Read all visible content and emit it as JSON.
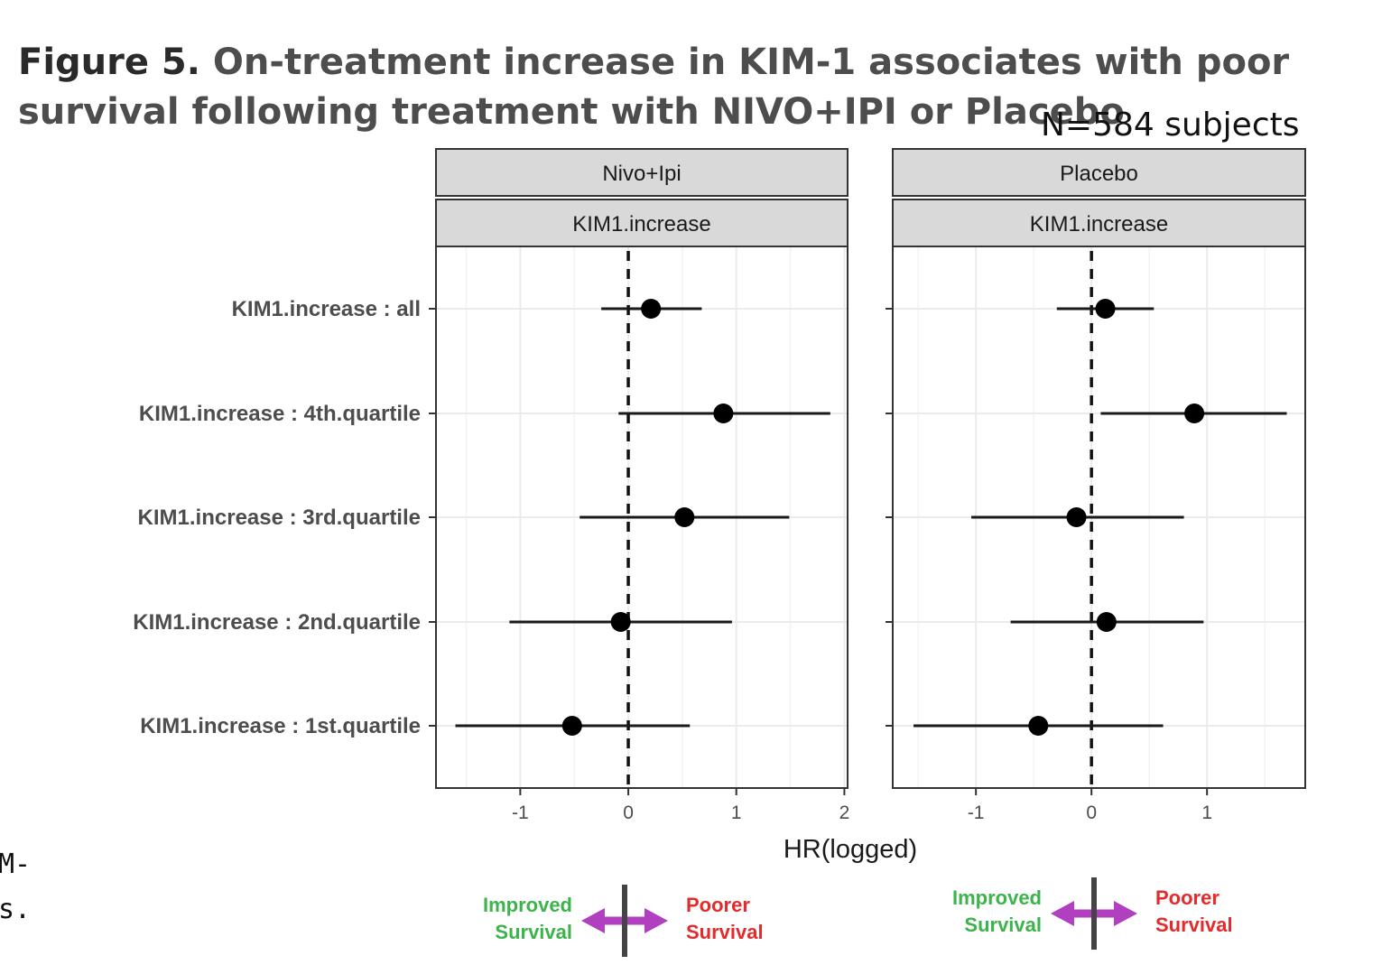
{
  "figure": {
    "number_label": "Figure 5.",
    "title": "On-treatment increase in KIM-1 associates with poor survival following treatment with NIVO+IPI or Placebo",
    "n_label": "N=584 subjects",
    "cut_text_lines": [
      "M-",
      "s."
    ]
  },
  "legend": {
    "improved_line1": "Improved",
    "improved_line2": "Survival",
    "poorer_line1": "Poorer",
    "poorer_line2": "Survival",
    "improved_color": "#3cb44b",
    "poorer_color": "#e32b2b",
    "arrow_color": "#b040c0"
  },
  "chart_data": {
    "type": "forest",
    "xlabel": "HR(logged)",
    "categories": [
      "KIM1.increase : all",
      "KIM1.increase : 4th.quartile",
      "KIM1.increase : 3rd.quartile",
      "KIM1.increase : 2nd.quartile",
      "KIM1.increase : 1st.quartile"
    ],
    "reference_line": 0,
    "grid": true,
    "panels": [
      {
        "strip_top": "Nivo+Ipi",
        "strip_bottom": "KIM1.increase",
        "xlim": [
          -1.78,
          2.03
        ],
        "xticks": [
          -1,
          0,
          1,
          2
        ],
        "xtick_labels": [
          "-1",
          "0",
          "1",
          "2"
        ],
        "estimates": [
          0.21,
          0.88,
          0.52,
          -0.07,
          -0.52
        ],
        "ci_low": [
          -0.25,
          -0.09,
          -0.45,
          -1.1,
          -1.6
        ],
        "ci_high": [
          0.68,
          1.87,
          1.49,
          0.96,
          0.57
        ]
      },
      {
        "strip_top": "Placebo",
        "strip_bottom": "KIM1.increase",
        "xlim": [
          -1.72,
          1.85
        ],
        "xticks": [
          -1,
          0,
          1
        ],
        "xtick_labels": [
          "-1",
          "0",
          "1"
        ],
        "estimates": [
          0.12,
          0.89,
          -0.13,
          0.13,
          -0.46
        ],
        "ci_low": [
          -0.3,
          0.08,
          -1.04,
          -0.7,
          -1.54
        ],
        "ci_high": [
          0.54,
          1.69,
          0.8,
          0.97,
          0.62
        ]
      }
    ]
  }
}
